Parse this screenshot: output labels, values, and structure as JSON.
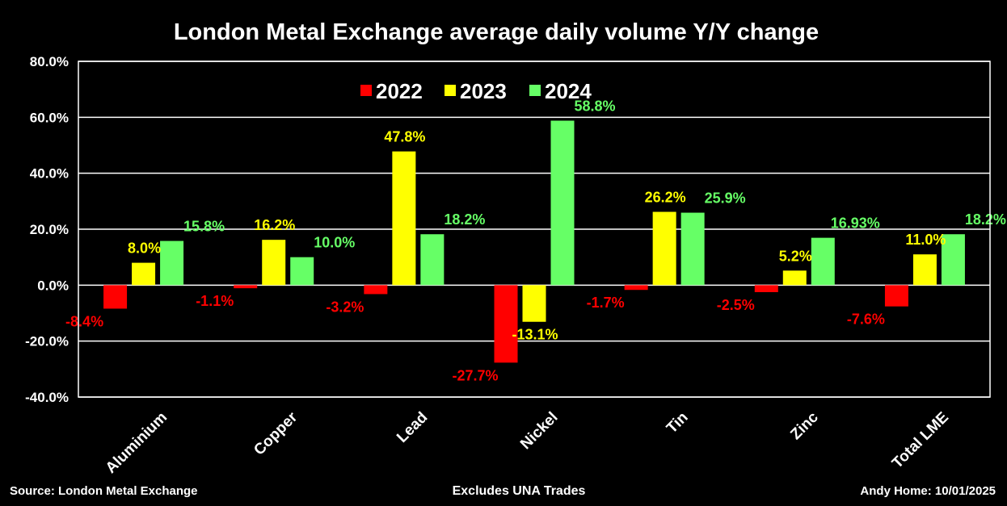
{
  "chart_data": {
    "type": "bar",
    "title": "London Metal Exchange average daily volume Y/Y change",
    "categories": [
      "Aluminium",
      "Copper",
      "Lead",
      "Nickel",
      "Tin",
      "Zinc",
      "Total LME"
    ],
    "series": [
      {
        "name": "2022",
        "color": "#ff0000",
        "values": [
          -8.4,
          -1.1,
          -3.2,
          -27.7,
          -1.7,
          -2.5,
          -7.6
        ],
        "labels": [
          "-8.4%",
          "-1.1%",
          "-3.2%",
          "-27.7%",
          "-1.7%",
          "-2.5%",
          "-7.6%"
        ]
      },
      {
        "name": "2023",
        "color": "#ffff00",
        "values": [
          8.0,
          16.2,
          47.8,
          -13.1,
          26.2,
          5.2,
          11.0
        ],
        "labels": [
          "8.0%",
          "16.2%",
          "47.8%",
          "-13.1%",
          "26.2%",
          "5.2%",
          "11.0%"
        ]
      },
      {
        "name": "2024",
        "color": "#66ff66",
        "values": [
          15.8,
          10.0,
          18.2,
          58.8,
          25.9,
          16.93,
          18.2
        ],
        "labels": [
          "15.8%",
          "10.0%",
          "18.2%",
          "58.8%",
          "25.9%",
          "16.93%",
          "18.2%"
        ]
      }
    ],
    "ylim": [
      -40,
      80
    ],
    "yticks": [
      80,
      60,
      40,
      20,
      0,
      -20,
      -40
    ],
    "ytick_labels": [
      "80.0%",
      "60.0%",
      "40.0%",
      "20.0%",
      "0.0%",
      "-20.0%",
      "-40.0%"
    ],
    "xlabel": "",
    "ylabel": "",
    "grid": true,
    "legend": "top-center"
  },
  "footer": {
    "source": "Source: London Metal Exchange",
    "note": "Excludes UNA Trades",
    "author": "Andy Home: 10/01/2025"
  }
}
